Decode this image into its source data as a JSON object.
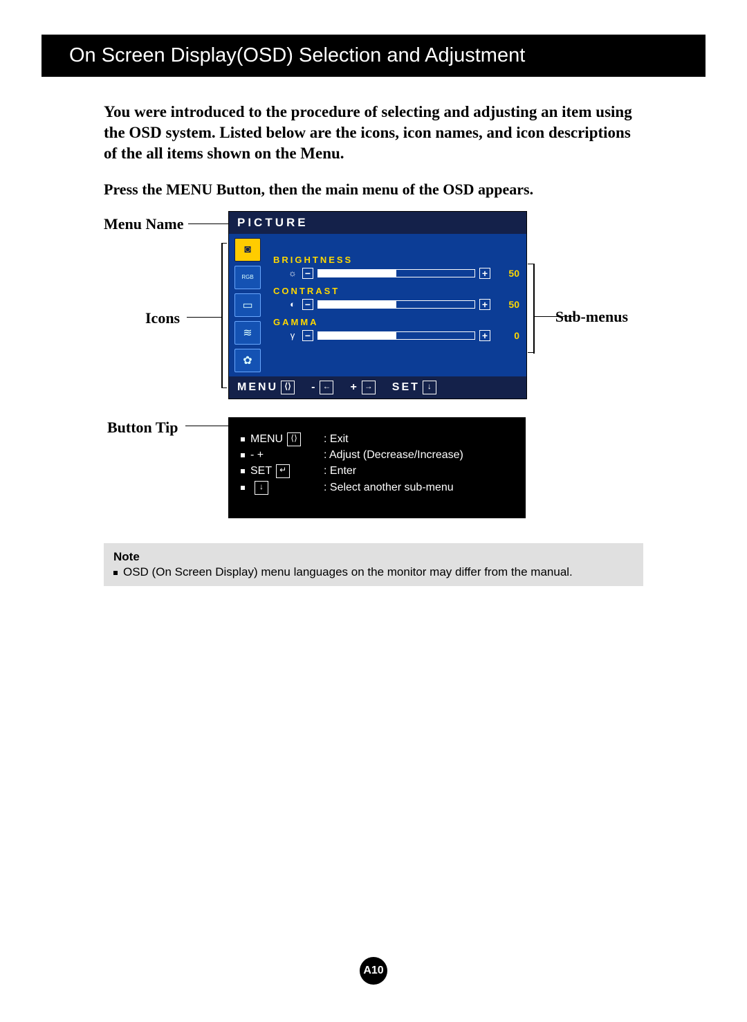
{
  "title": "On Screen Display(OSD) Selection and Adjustment",
  "intro": "You were introduced to the procedure of selecting and adjusting an item using the OSD system.  Listed below are the icons, icon names, and icon descriptions of the all items shown on the Menu.",
  "subintro": "Press the MENU Button, then the main menu of the OSD appears.",
  "labels": {
    "menu_name": "Menu Name",
    "icons": "Icons",
    "button_tip": "Button Tip",
    "sub_menus": "Sub-menus"
  },
  "osd": {
    "menu_title": "PICTURE",
    "colors": {
      "panel_bg": "#0c3d96",
      "header_bg": "#14214a",
      "header_fg": "#ffffff",
      "label_fg": "#ffd800",
      "value_fg": "#ffd800",
      "selected_icon_bg": "#ffcc00",
      "icon_bg": "#1452b3"
    },
    "sidebar": [
      {
        "name": "picture-icon",
        "glyph": "◙",
        "selected": true
      },
      {
        "name": "color-icon",
        "glyph": "RGB",
        "selected": false,
        "tiny": true
      },
      {
        "name": "screen-icon",
        "glyph": "▭",
        "selected": false
      },
      {
        "name": "setup-icon",
        "glyph": "≋",
        "selected": false
      },
      {
        "name": "flower-icon",
        "glyph": "✿",
        "selected": false
      }
    ],
    "items": [
      {
        "label": "BRIGHTNESS",
        "icon": "☼",
        "value": 50,
        "fill_pct": 50
      },
      {
        "label": "CONTRAST",
        "icon": "◐",
        "value": 50,
        "fill_pct": 50
      },
      {
        "label": "GAMMA",
        "icon": "γ",
        "value": 0,
        "fill_pct": 50
      }
    ],
    "footer": {
      "menu": "MENU",
      "set": "SET",
      "minus": "-",
      "plus": "+",
      "menu_glyph": "⟨⟩",
      "minus_glyph": "←",
      "plus_glyph": "→",
      "set_glyph": "↓"
    }
  },
  "tips": [
    {
      "key": "MENU",
      "glyph": "⟨⟩",
      "desc": ": Exit"
    },
    {
      "key": "-   +",
      "glyph": "",
      "desc": ": Adjust (Decrease/Increase)"
    },
    {
      "key": "SET",
      "glyph": "↵",
      "desc": ": Enter"
    },
    {
      "key": "",
      "glyph": "↓",
      "desc": ": Select another sub-menu"
    }
  ],
  "note": {
    "label": "Note",
    "text": "OSD (On Screen Display) menu languages on the monitor may differ from the manual."
  },
  "page_number": "A10"
}
